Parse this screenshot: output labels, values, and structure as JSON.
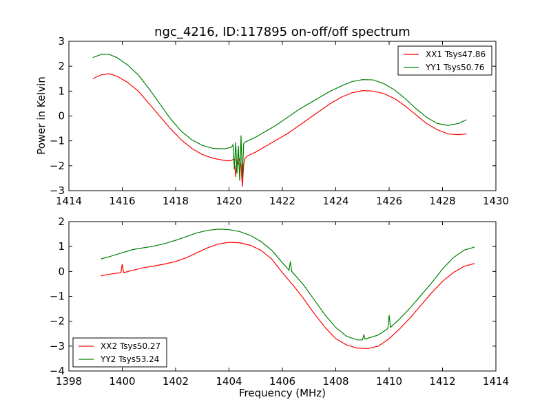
{
  "colors": {
    "xx": "#ff0000",
    "yy": "#008000",
    "axes": "#000000",
    "background": "#ffffff"
  },
  "chart_data": [
    {
      "type": "line",
      "title": "ngc_4216, ID:117895 on-off/off spectrum",
      "xlabel": "",
      "ylabel": "Power in Kelvin",
      "xlim": [
        1414,
        1430
      ],
      "ylim": [
        -3,
        3
      ],
      "xticks": [
        "1414",
        "1416",
        "1418",
        "1420",
        "1422",
        "1424",
        "1426",
        "1428",
        "1430"
      ],
      "yticks": [
        "−3",
        "−2",
        "−1",
        "0",
        "1",
        "2",
        "3"
      ],
      "legend_placement": "top-right",
      "series": [
        {
          "name": "XX1 Tsys47.86",
          "color": "#ff0000",
          "x": [
            1414.9,
            1415.2,
            1415.5,
            1415.8,
            1416.2,
            1416.6,
            1417.0,
            1417.4,
            1417.8,
            1418.2,
            1418.6,
            1419.0,
            1419.4,
            1419.8,
            1420.0,
            1420.1,
            1420.2,
            1420.25,
            1420.3,
            1420.35,
            1420.4,
            1420.45,
            1420.5,
            1420.55,
            1420.6,
            1420.7,
            1421.0,
            1421.4,
            1421.8,
            1422.2,
            1422.6,
            1423.0,
            1423.4,
            1423.8,
            1424.2,
            1424.6,
            1425.0,
            1425.4,
            1425.8,
            1426.2,
            1426.6,
            1427.0,
            1427.4,
            1427.8,
            1428.2,
            1428.6,
            1428.9
          ],
          "y": [
            1.5,
            1.65,
            1.7,
            1.6,
            1.35,
            1.0,
            0.5,
            0.0,
            -0.5,
            -0.95,
            -1.3,
            -1.55,
            -1.7,
            -1.78,
            -1.8,
            -1.78,
            -1.72,
            -2.45,
            -1.75,
            -1.95,
            -1.7,
            -2.0,
            -2.85,
            -1.95,
            -1.7,
            -1.6,
            -1.45,
            -1.2,
            -0.95,
            -0.7,
            -0.4,
            -0.1,
            0.2,
            0.5,
            0.75,
            0.93,
            1.02,
            1.0,
            0.9,
            0.7,
            0.4,
            0.05,
            -0.3,
            -0.55,
            -0.72,
            -0.75,
            -0.72
          ]
        },
        {
          "name": "YY1 Tsys50.76",
          "color": "#008000",
          "x": [
            1414.9,
            1415.2,
            1415.5,
            1415.8,
            1416.2,
            1416.6,
            1417.0,
            1417.4,
            1417.8,
            1418.2,
            1418.6,
            1419.0,
            1419.4,
            1419.8,
            1420.0,
            1420.1,
            1420.15,
            1420.2,
            1420.25,
            1420.3,
            1420.35,
            1420.4,
            1420.45,
            1420.5,
            1420.55,
            1420.6,
            1420.7,
            1421.0,
            1421.4,
            1421.8,
            1422.2,
            1422.6,
            1423.0,
            1423.4,
            1423.8,
            1424.2,
            1424.6,
            1425.0,
            1425.4,
            1425.8,
            1426.2,
            1426.6,
            1427.0,
            1427.4,
            1427.8,
            1428.2,
            1428.6,
            1428.9
          ],
          "y": [
            2.35,
            2.47,
            2.48,
            2.35,
            2.05,
            1.65,
            1.1,
            0.5,
            -0.1,
            -0.6,
            -0.95,
            -1.18,
            -1.3,
            -1.32,
            -1.28,
            -1.25,
            -1.15,
            -2.15,
            -1.05,
            -2.3,
            -1.2,
            -2.6,
            -0.78,
            -2.5,
            -1.1,
            -1.05,
            -1.0,
            -0.85,
            -0.6,
            -0.35,
            -0.05,
            0.25,
            0.5,
            0.75,
            1.0,
            1.2,
            1.38,
            1.46,
            1.45,
            1.3,
            1.05,
            0.7,
            0.3,
            -0.05,
            -0.3,
            -0.38,
            -0.3,
            -0.15
          ]
        }
      ]
    },
    {
      "type": "line",
      "title": "",
      "xlabel": "Frequency (MHz)",
      "ylabel": "",
      "xlim": [
        1398,
        1414
      ],
      "ylim": [
        -4,
        2
      ],
      "xticks": [
        "1398",
        "1400",
        "1402",
        "1404",
        "1406",
        "1408",
        "1410",
        "1412",
        "1414"
      ],
      "yticks": [
        "−4",
        "−3",
        "−2",
        "−1",
        "0",
        "1",
        "2"
      ],
      "legend_placement": "bottom-left",
      "series": [
        {
          "name": "XX2 Tsys50.27",
          "color": "#ff0000",
          "x": [
            1399.2,
            1399.6,
            1399.95,
            1400.0,
            1400.05,
            1400.4,
            1400.8,
            1401.2,
            1401.6,
            1402.0,
            1402.4,
            1402.8,
            1403.2,
            1403.6,
            1404.0,
            1404.4,
            1404.8,
            1405.2,
            1405.6,
            1406.0,
            1406.4,
            1406.8,
            1407.2,
            1407.6,
            1408.0,
            1408.4,
            1408.8,
            1409.2,
            1409.6,
            1410.0,
            1410.4,
            1410.8,
            1411.2,
            1411.6,
            1412.0,
            1412.4,
            1412.8,
            1413.2
          ],
          "y": [
            -0.18,
            -0.1,
            -0.05,
            0.3,
            -0.05,
            0.05,
            0.15,
            0.22,
            0.3,
            0.4,
            0.55,
            0.75,
            0.95,
            1.1,
            1.17,
            1.15,
            1.05,
            0.85,
            0.5,
            -0.05,
            -0.55,
            -1.1,
            -1.7,
            -2.25,
            -2.7,
            -2.95,
            -3.08,
            -3.1,
            -3.0,
            -2.7,
            -2.3,
            -1.85,
            -1.35,
            -0.85,
            -0.4,
            -0.05,
            0.2,
            0.32
          ]
        },
        {
          "name": "YY2 Tsys53.24",
          "color": "#008000",
          "x": [
            1399.2,
            1399.6,
            1400.0,
            1400.4,
            1400.8,
            1401.2,
            1401.6,
            1402.0,
            1402.4,
            1402.8,
            1403.2,
            1403.6,
            1404.0,
            1404.4,
            1404.8,
            1405.2,
            1405.6,
            1406.0,
            1406.25,
            1406.3,
            1406.35,
            1406.8,
            1407.2,
            1407.6,
            1408.0,
            1408.4,
            1408.8,
            1409.0,
            1409.05,
            1409.1,
            1409.6,
            1409.95,
            1410.0,
            1410.05,
            1410.4,
            1410.8,
            1411.2,
            1411.6,
            1412.0,
            1412.4,
            1412.8,
            1413.2
          ],
          "y": [
            0.5,
            0.62,
            0.75,
            0.88,
            0.95,
            1.02,
            1.12,
            1.25,
            1.4,
            1.55,
            1.65,
            1.7,
            1.68,
            1.6,
            1.45,
            1.2,
            0.85,
            0.35,
            0.05,
            0.4,
            0.0,
            -0.55,
            -1.15,
            -1.75,
            -2.25,
            -2.6,
            -2.75,
            -2.75,
            -2.55,
            -2.72,
            -2.55,
            -2.3,
            -1.75,
            -2.25,
            -1.9,
            -1.45,
            -0.95,
            -0.45,
            0.1,
            0.55,
            0.85,
            0.98
          ]
        }
      ]
    }
  ]
}
